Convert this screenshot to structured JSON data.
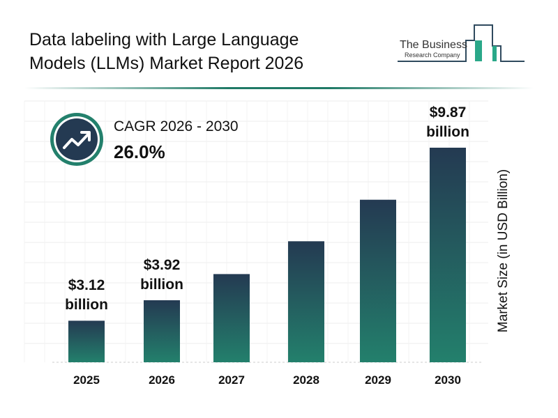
{
  "title_line1": "Data labeling with Large Language",
  "title_line2": "Models (LLMs) Market Report 2026",
  "logo": {
    "line1": "The Business",
    "line2": "Research Company"
  },
  "cagr": {
    "label": "CAGR 2026 - 2030",
    "value": "26.0%",
    "icon": "trending-up-icon"
  },
  "colors": {
    "bar_top": "#243a52",
    "bar_bottom": "#23806c",
    "accent": "#1f7a66",
    "icon_bg": "#243a52"
  },
  "chart_data": {
    "type": "bar",
    "title": "Data labeling with Large Language Models (LLMs) Market Report 2026",
    "categories": [
      "2025",
      "2026",
      "2027",
      "2028",
      "2029",
      "2030"
    ],
    "values": [
      3.12,
      3.92,
      4.94,
      6.22,
      7.84,
      9.87
    ],
    "data_labels": [
      {
        "index": 0,
        "amount": "$3.12",
        "unit": "billion"
      },
      {
        "index": 1,
        "amount": "$3.92",
        "unit": "billion"
      },
      {
        "index": 5,
        "amount": "$9.87",
        "unit": "billion"
      }
    ],
    "xlabel": "",
    "ylabel": "Market Size (in USD Billion)",
    "grid": true
  }
}
